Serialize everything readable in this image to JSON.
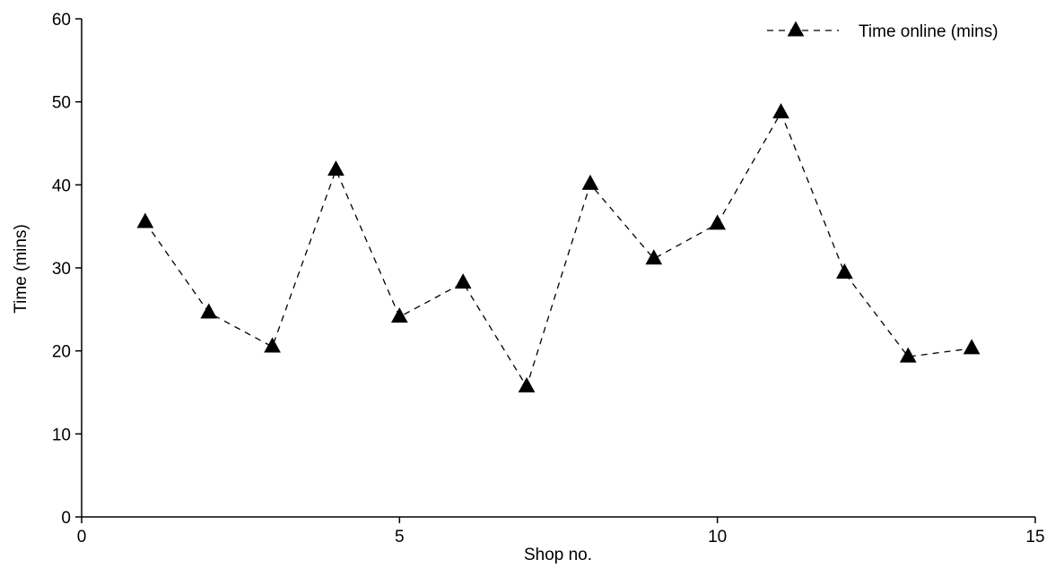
{
  "chart_data": {
    "type": "line",
    "title": "",
    "xlabel": "Shop no.",
    "ylabel": "Time (mins)",
    "xlim": [
      0,
      15
    ],
    "ylim": [
      0,
      60
    ],
    "xticks": [
      0,
      5,
      10,
      15
    ],
    "yticks": [
      0,
      10,
      20,
      30,
      40,
      50,
      60
    ],
    "grid": false,
    "legend_position": "top-right",
    "series": [
      {
        "name": "Time online (mins)",
        "marker": "triangle",
        "line_style": "dashed",
        "color": "#000000",
        "x": [
          1,
          2,
          3,
          4,
          5,
          6,
          7,
          8,
          9,
          10,
          11,
          12,
          13,
          14
        ],
        "y": [
          35.5,
          24.6,
          20.5,
          41.8,
          24.1,
          28.2,
          15.7,
          40.1,
          31.1,
          35.3,
          48.7,
          29.4,
          19.3,
          20.3
        ]
      }
    ]
  }
}
